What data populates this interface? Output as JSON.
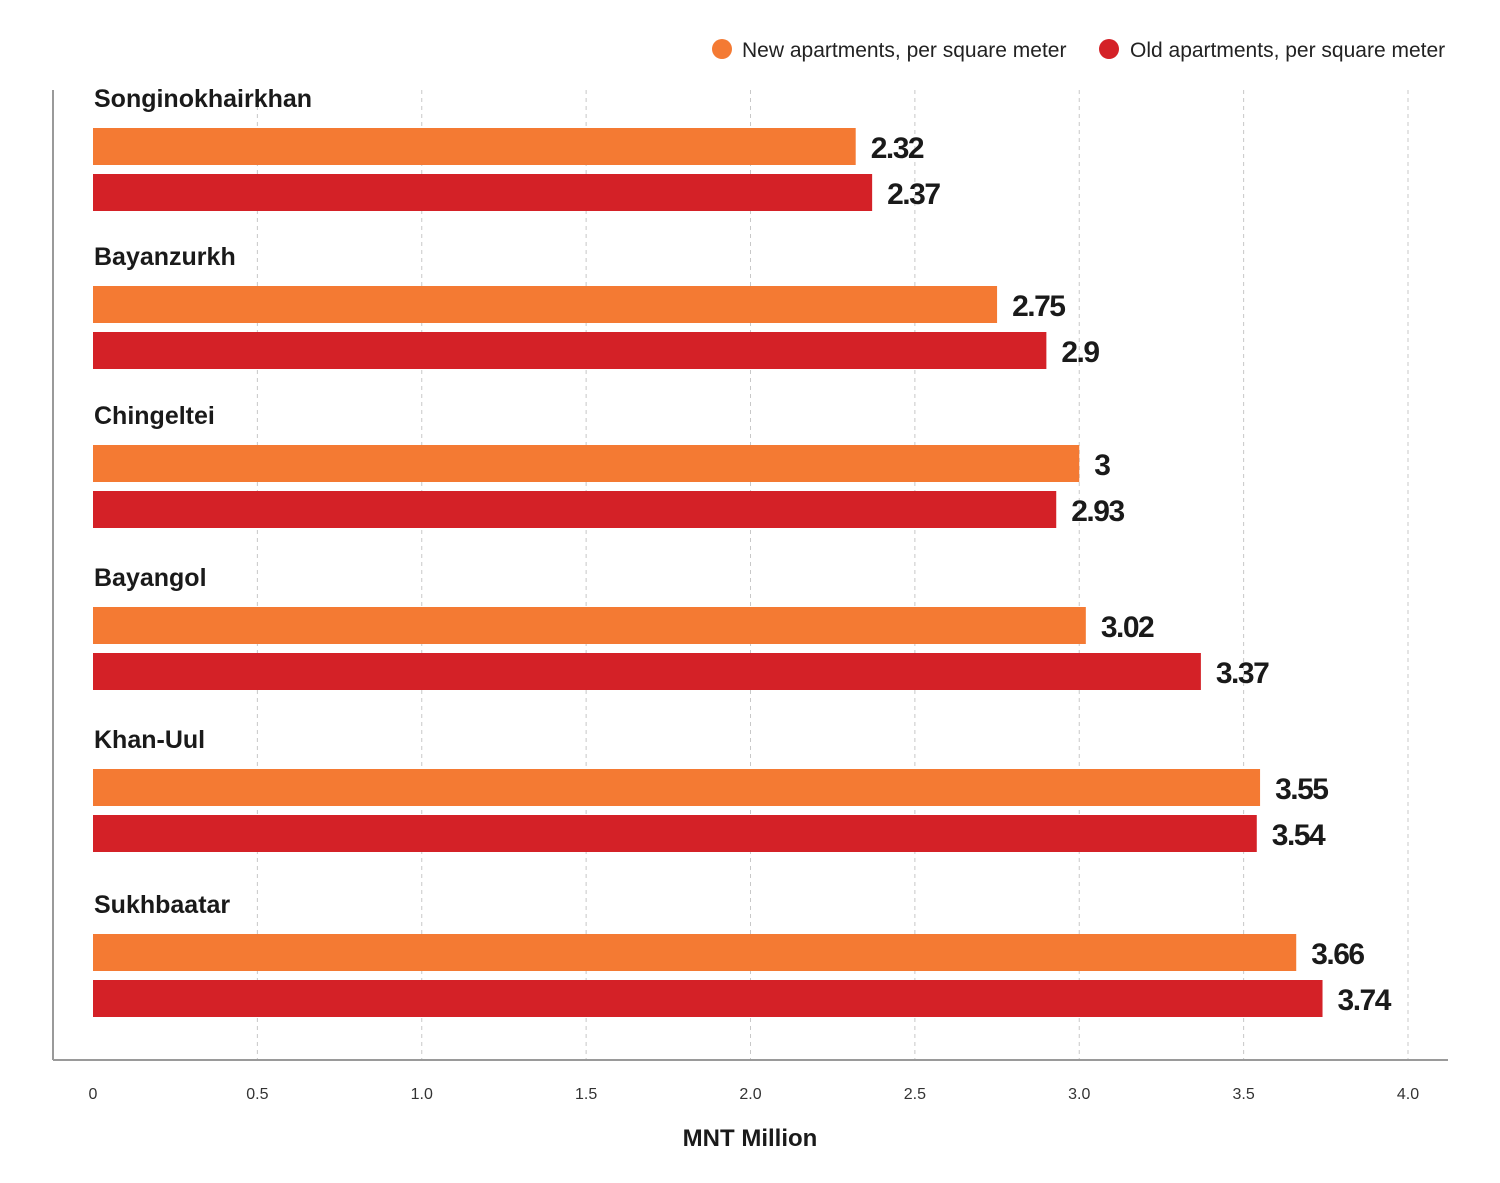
{
  "chart_data": {
    "type": "bar",
    "orientation": "horizontal",
    "categories": [
      "Songinokhairkhan",
      "Bayanzurkh",
      "Chingeltei",
      "Bayangol",
      "Khan-Uul",
      "Sukhbaatar"
    ],
    "series": [
      {
        "name": "New apartments, per square meter",
        "color": "#f47a33",
        "values": [
          2.32,
          2.75,
          3,
          3.02,
          3.55,
          3.66
        ],
        "labels": [
          "2.32",
          "2.75",
          "3",
          "3.02",
          "3.55",
          "3.66"
        ]
      },
      {
        "name": "Old apartments, per square meter",
        "color": "#d42127",
        "values": [
          2.37,
          2.9,
          2.93,
          3.37,
          3.54,
          3.74
        ],
        "labels": [
          "2.37",
          "2.9",
          "2.93",
          "3.37",
          "3.54",
          "3.74"
        ]
      }
    ],
    "xlabel": "MNT Million",
    "ylabel": "",
    "xlim": [
      0,
      4.0
    ],
    "ticks": [
      "0",
      "0.5",
      "1.0",
      "1.5",
      "2.0",
      "2.5",
      "3.0",
      "3.5",
      "4.0"
    ],
    "tick_values": [
      0,
      0.5,
      1.0,
      1.5,
      2.0,
      2.5,
      3.0,
      3.5,
      4.0
    ],
    "grid": "vertical dashed",
    "legend_position": "top-right"
  }
}
